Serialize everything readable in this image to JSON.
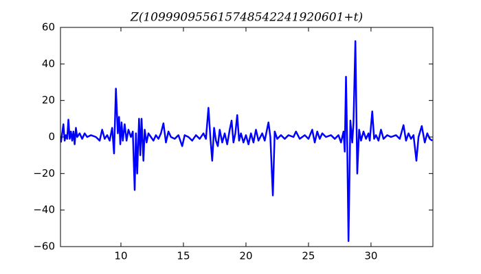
{
  "chart_data": {
    "type": "line",
    "title": "Z(109990955615748542241920601+t)",
    "x": [
      5.2,
      5.3,
      5.4,
      5.5,
      5.6,
      5.7,
      5.8,
      5.9,
      6.0,
      6.1,
      6.2,
      6.3,
      6.4,
      6.5,
      6.7,
      6.9,
      7.1,
      7.3,
      7.6,
      8.0,
      8.3,
      8.5,
      8.7,
      8.9,
      9.1,
      9.3,
      9.45,
      9.6,
      9.75,
      9.85,
      9.95,
      10.05,
      10.15,
      10.3,
      10.45,
      10.6,
      10.8,
      10.95,
      11.1,
      11.2,
      11.3,
      11.45,
      11.55,
      11.65,
      11.8,
      11.9,
      12.05,
      12.2,
      12.4,
      12.6,
      12.8,
      13.0,
      13.2,
      13.4,
      13.6,
      13.8,
      14.0,
      14.3,
      14.6,
      14.8,
      14.9,
      15.1,
      15.4,
      15.7,
      16.0,
      16.3,
      16.6,
      16.8,
      17.0,
      17.15,
      17.3,
      17.45,
      17.6,
      17.75,
      17.9,
      18.1,
      18.3,
      18.5,
      18.7,
      18.85,
      19.0,
      19.15,
      19.3,
      19.45,
      19.6,
      19.8,
      20.0,
      20.2,
      20.4,
      20.6,
      20.8,
      21.0,
      21.3,
      21.5,
      21.8,
      21.95,
      22.15,
      22.3,
      22.5,
      22.8,
      23.1,
      23.4,
      23.8,
      24.0,
      24.3,
      24.7,
      25.0,
      25.3,
      25.5,
      25.7,
      25.9,
      26.1,
      26.4,
      26.8,
      27.1,
      27.4,
      27.6,
      27.8,
      27.9,
      28.0,
      28.1,
      28.2,
      28.35,
      28.5,
      28.6,
      28.75,
      28.9,
      29.05,
      29.2,
      29.4,
      29.6,
      29.8,
      29.9,
      30.1,
      30.25,
      30.4,
      30.6,
      30.8,
      31.0,
      31.3,
      31.6,
      32.0,
      32.3,
      32.6,
      32.8,
      33.0,
      33.2,
      33.4,
      33.63,
      33.8,
      34.06,
      34.3,
      34.5,
      34.7,
      34.9
    ],
    "values": [
      -3,
      2,
      7,
      -2,
      1,
      -1,
      9.5,
      -1,
      3,
      -2,
      3,
      -4,
      5,
      0,
      2,
      -1,
      2,
      0,
      1,
      0,
      -2,
      4,
      -1,
      1,
      -2,
      5,
      -9,
      26.5,
      2,
      11,
      -4,
      8,
      -2,
      7,
      -2,
      4,
      0,
      3,
      -29,
      2,
      -20,
      10,
      -10,
      10,
      -13,
      4,
      -3,
      2,
      0,
      -2,
      1,
      -1,
      2,
      7.5,
      -3,
      3,
      0,
      -1,
      1,
      -3,
      -5,
      1,
      0,
      -2,
      1,
      -1,
      2,
      -1,
      16,
      0,
      -13,
      5,
      -2,
      -5,
      4,
      -3,
      2,
      -4,
      4,
      9,
      -3,
      2,
      12,
      -2,
      2,
      -3,
      1,
      -4,
      2,
      -3,
      4,
      -2,
      2,
      -2,
      8,
      0,
      -32,
      3,
      -1,
      1,
      -1,
      1,
      0,
      3,
      -1,
      1,
      -1,
      4,
      -3,
      3,
      -1,
      2,
      0,
      1,
      -1,
      1,
      -3,
      3,
      -8,
      33,
      -5,
      -57,
      9,
      -3,
      8,
      52.5,
      -20,
      4,
      -2,
      3,
      -1,
      2,
      -2,
      14,
      -1,
      1,
      -2,
      4,
      -1,
      1,
      0,
      1,
      -1,
      6.5,
      -2,
      2,
      -1,
      1,
      -13,
      0,
      6,
      -3,
      2,
      -1,
      -2
    ],
    "color": "#0000ff",
    "xlim": [
      5.165,
      34.95
    ],
    "xticks": [
      10,
      15,
      20,
      25,
      30
    ],
    "ylim": [
      -60,
      60
    ],
    "yticks": [
      {
        "value": -60,
        "label": "−60"
      },
      {
        "value": -40,
        "label": "−40"
      },
      {
        "value": -20,
        "label": "−20"
      },
      0,
      20,
      40,
      60
    ]
  }
}
